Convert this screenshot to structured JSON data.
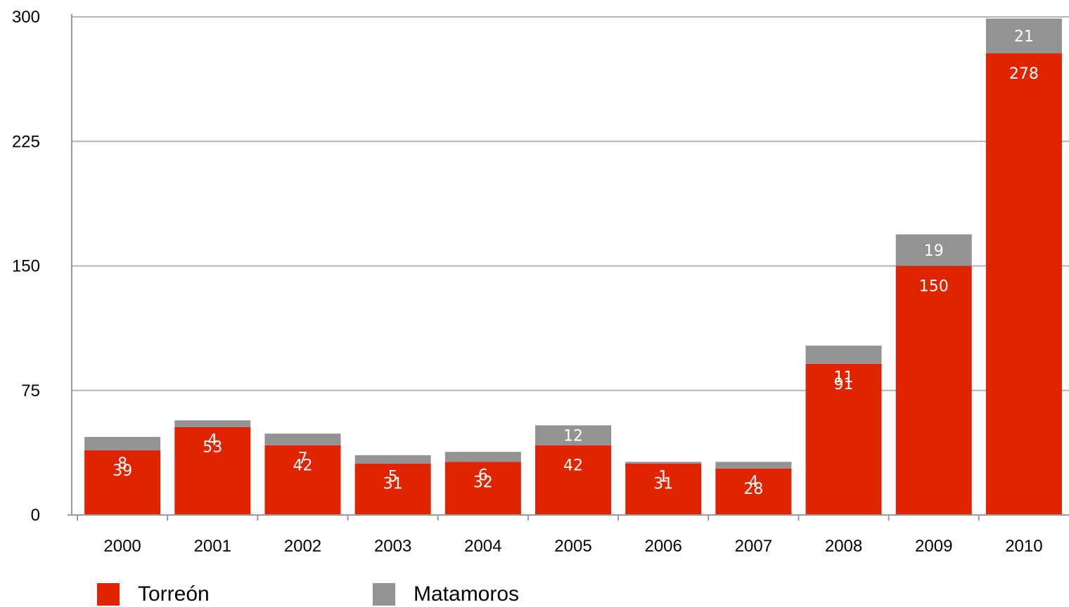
{
  "chart_data": {
    "type": "bar",
    "stacked": true,
    "categories": [
      "2000",
      "2001",
      "2002",
      "2003",
      "2004",
      "2005",
      "2006",
      "2007",
      "2008",
      "2009",
      "2010"
    ],
    "series": [
      {
        "name": "Torreón",
        "color": "#e02400",
        "values": [
          39,
          53,
          42,
          31,
          32,
          42,
          31,
          28,
          91,
          150,
          278
        ]
      },
      {
        "name": "Matamoros",
        "color": "#939393",
        "values": [
          8,
          4,
          7,
          5,
          6,
          12,
          1,
          4,
          11,
          19,
          21
        ]
      }
    ],
    "ylim": [
      0,
      300
    ],
    "yticks": [
      "0",
      "75",
      "150",
      "225",
      "300"
    ],
    "grid": true,
    "legend_position": "bottom-left",
    "title": "",
    "xlabel": "",
    "ylabel": ""
  }
}
